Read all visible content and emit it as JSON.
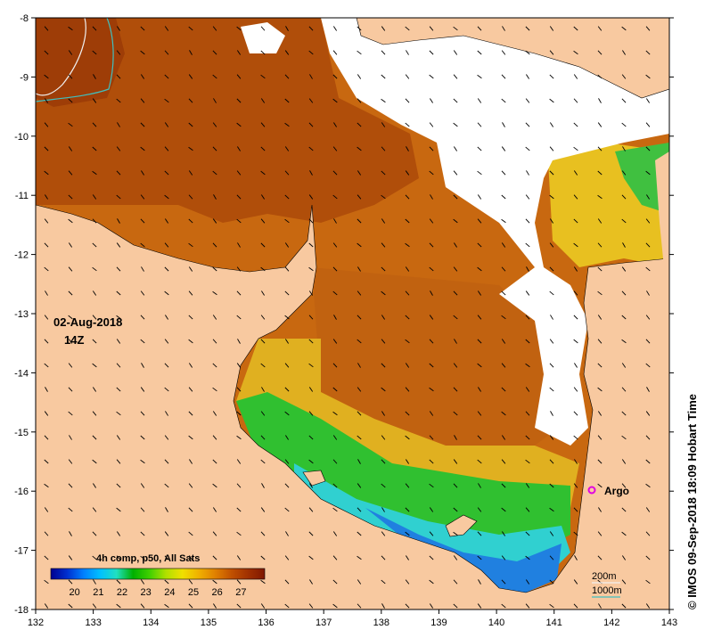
{
  "map": {
    "date": "02-Aug-2018",
    "time": "14Z",
    "composite_label": "4h comp, p50, All Sats",
    "credit": "© IMOS 09-Sep-2018 18:09 Hobart Time",
    "float_label": "Argo",
    "contour_labels": [
      "200m",
      "1000m"
    ],
    "x_ticks": [
      "132",
      "133",
      "134",
      "135",
      "136",
      "137",
      "138",
      "139",
      "140",
      "141",
      "142",
      "143"
    ],
    "y_ticks": [
      "-8",
      "-9",
      "-10",
      "-11",
      "-12",
      "-13",
      "-14",
      "-15",
      "-16",
      "-17",
      "-18"
    ],
    "colorbar_ticks": [
      "20",
      "21",
      "22",
      "23",
      "24",
      "25",
      "26",
      "27"
    ],
    "colorbar_colors": [
      "#000090",
      "#0030d0",
      "#0080ff",
      "#00c0ff",
      "#20e0c0",
      "#00b000",
      "#40d000",
      "#b0e000",
      "#f0e000",
      "#f0b000",
      "#e08000",
      "#c05000",
      "#a03000",
      "#801800"
    ],
    "colors": {
      "land": "#f8c9a0",
      "no_data": "#ffffff",
      "sst_warm": "#c06010",
      "sst_hot": "#a84008",
      "sst_mid": "#d88c18",
      "sst_yellow": "#e8c020",
      "sst_green": "#20c020",
      "sst_cyan": "#20c8e0",
      "sst_blue": "#1070e0",
      "argo_marker": "#e000e0",
      "contour_200m": "#f0f0f0",
      "contour_1000m": "#40c0c0"
    }
  }
}
